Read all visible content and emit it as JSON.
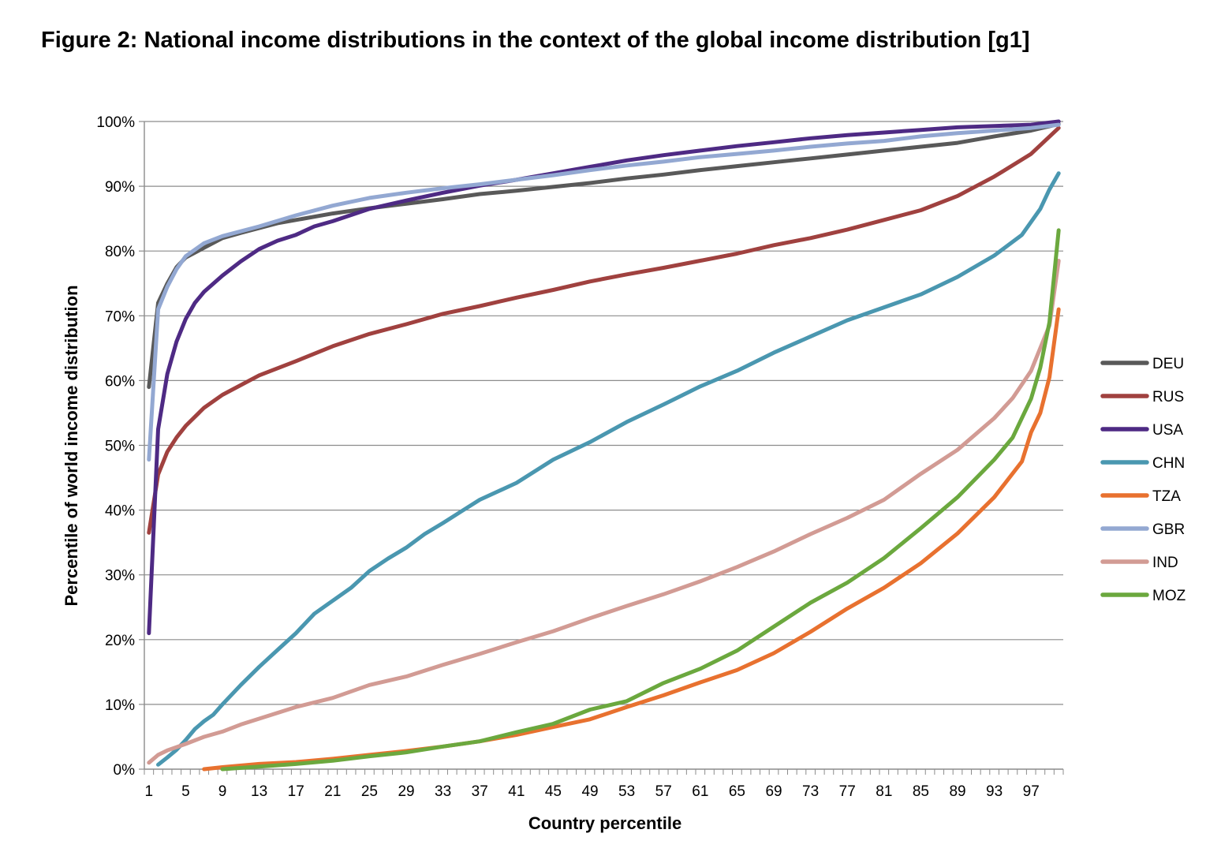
{
  "title": "Figure 2: National income distributions in the context of the global income distribution [g1]",
  "chart_data": {
    "type": "line",
    "title": "Figure 2: National income distributions in the context of the global income distribution [g1]",
    "xlabel": "Country percentile",
    "ylabel": "Percentile of world income distribution",
    "xlim": [
      1,
      100
    ],
    "ylim": [
      0,
      100
    ],
    "x_ticks": [
      "1",
      "5",
      "9",
      "13",
      "17",
      "21",
      "25",
      "29",
      "33",
      "37",
      "41",
      "45",
      "49",
      "53",
      "57",
      "61",
      "65",
      "69",
      "73",
      "77",
      "81",
      "85",
      "89",
      "93",
      "97"
    ],
    "y_ticks": [
      "0%",
      "10%",
      "20%",
      "30%",
      "40%",
      "50%",
      "60%",
      "70%",
      "80%",
      "90%",
      "100%"
    ],
    "grid": "horizontal",
    "legend_position": "right",
    "series": [
      {
        "name": "DEU",
        "color": "#595959",
        "points": [
          [
            1,
            59
          ],
          [
            2,
            72
          ],
          [
            3,
            75
          ],
          [
            4,
            77.5
          ],
          [
            5,
            79
          ],
          [
            7,
            80.5
          ],
          [
            9,
            82
          ],
          [
            11,
            82.8
          ],
          [
            15,
            84.3
          ],
          [
            21,
            85.8
          ],
          [
            25,
            86.6
          ],
          [
            29,
            87.3
          ],
          [
            33,
            88
          ],
          [
            37,
            88.8
          ],
          [
            41,
            89.3
          ],
          [
            45,
            89.9
          ],
          [
            49,
            90.5
          ],
          [
            53,
            91.2
          ],
          [
            57,
            91.8
          ],
          [
            61,
            92.5
          ],
          [
            65,
            93.1
          ],
          [
            69,
            93.7
          ],
          [
            73,
            94.3
          ],
          [
            77,
            94.9
          ],
          [
            81,
            95.5
          ],
          [
            85,
            96.1
          ],
          [
            89,
            96.7
          ],
          [
            93,
            97.7
          ],
          [
            97,
            98.6
          ],
          [
            100,
            99.6
          ]
        ]
      },
      {
        "name": "RUS",
        "color": "#A0413F",
        "points": [
          [
            1,
            36.5
          ],
          [
            2,
            45.5
          ],
          [
            3,
            49
          ],
          [
            4,
            51.2
          ],
          [
            5,
            53
          ],
          [
            7,
            55.8
          ],
          [
            9,
            57.8
          ],
          [
            13,
            60.8
          ],
          [
            17,
            63
          ],
          [
            21,
            65.3
          ],
          [
            25,
            67.2
          ],
          [
            29,
            68.7
          ],
          [
            33,
            70.3
          ],
          [
            37,
            71.5
          ],
          [
            41,
            72.8
          ],
          [
            45,
            74
          ],
          [
            49,
            75.3
          ],
          [
            53,
            76.4
          ],
          [
            57,
            77.4
          ],
          [
            61,
            78.5
          ],
          [
            65,
            79.6
          ],
          [
            69,
            80.9
          ],
          [
            73,
            82
          ],
          [
            77,
            83.3
          ],
          [
            81,
            84.8
          ],
          [
            85,
            86.3
          ],
          [
            89,
            88.5
          ],
          [
            93,
            91.5
          ],
          [
            97,
            95
          ],
          [
            100,
            99
          ]
        ]
      },
      {
        "name": "USA",
        "color": "#4E2A84",
        "points": [
          [
            1,
            21
          ],
          [
            2,
            52.5
          ],
          [
            3,
            61
          ],
          [
            4,
            66
          ],
          [
            5,
            69.5
          ],
          [
            6,
            72
          ],
          [
            7,
            73.7
          ],
          [
            9,
            76.2
          ],
          [
            11,
            78.4
          ],
          [
            13,
            80.3
          ],
          [
            15,
            81.6
          ],
          [
            17,
            82.5
          ],
          [
            19,
            83.8
          ],
          [
            21,
            84.6
          ],
          [
            25,
            86.5
          ],
          [
            29,
            87.8
          ],
          [
            33,
            89
          ],
          [
            37,
            90.1
          ],
          [
            41,
            91
          ],
          [
            45,
            92
          ],
          [
            49,
            93
          ],
          [
            53,
            94
          ],
          [
            57,
            94.8
          ],
          [
            61,
            95.5
          ],
          [
            65,
            96.2
          ],
          [
            69,
            96.8
          ],
          [
            73,
            97.4
          ],
          [
            77,
            97.9
          ],
          [
            81,
            98.3
          ],
          [
            85,
            98.7
          ],
          [
            89,
            99.1
          ],
          [
            93,
            99.3
          ],
          [
            97,
            99.5
          ],
          [
            100,
            100
          ]
        ]
      },
      {
        "name": "CHN",
        "color": "#4A97B0",
        "points": [
          [
            2,
            0.7
          ],
          [
            3,
            1.8
          ],
          [
            4,
            3
          ],
          [
            5,
            4.5
          ],
          [
            6,
            6.2
          ],
          [
            7,
            7.4
          ],
          [
            8,
            8.4
          ],
          [
            9,
            10
          ],
          [
            11,
            13
          ],
          [
            13,
            15.8
          ],
          [
            15,
            18.4
          ],
          [
            17,
            21
          ],
          [
            19,
            24
          ],
          [
            21,
            26
          ],
          [
            23,
            28
          ],
          [
            25,
            30.6
          ],
          [
            27,
            32.5
          ],
          [
            29,
            34.2
          ],
          [
            31,
            36.3
          ],
          [
            33,
            38
          ],
          [
            35,
            39.8
          ],
          [
            37,
            41.6
          ],
          [
            41,
            44.2
          ],
          [
            45,
            47.8
          ],
          [
            49,
            50.5
          ],
          [
            53,
            53.6
          ],
          [
            57,
            56.3
          ],
          [
            61,
            59.1
          ],
          [
            65,
            61.5
          ],
          [
            69,
            64.3
          ],
          [
            73,
            66.8
          ],
          [
            77,
            69.3
          ],
          [
            81,
            71.3
          ],
          [
            85,
            73.3
          ],
          [
            89,
            76
          ],
          [
            93,
            79.3
          ],
          [
            96,
            82.5
          ],
          [
            98,
            86.5
          ],
          [
            99,
            89.5
          ],
          [
            100,
            92
          ]
        ]
      },
      {
        "name": "TZA",
        "color": "#E8712F",
        "points": [
          [
            7,
            0
          ],
          [
            9,
            0.3
          ],
          [
            13,
            0.8
          ],
          [
            17,
            1.1
          ],
          [
            21,
            1.6
          ],
          [
            25,
            2.2
          ],
          [
            29,
            2.8
          ],
          [
            33,
            3.5
          ],
          [
            37,
            4.3
          ],
          [
            41,
            5.3
          ],
          [
            45,
            6.5
          ],
          [
            49,
            7.7
          ],
          [
            53,
            9.6
          ],
          [
            57,
            11.4
          ],
          [
            61,
            13.4
          ],
          [
            65,
            15.3
          ],
          [
            69,
            17.9
          ],
          [
            73,
            21.2
          ],
          [
            77,
            24.8
          ],
          [
            81,
            28
          ],
          [
            85,
            31.8
          ],
          [
            89,
            36.4
          ],
          [
            93,
            42
          ],
          [
            96,
            47.5
          ],
          [
            97,
            52
          ],
          [
            98,
            55
          ],
          [
            99,
            60.5
          ],
          [
            100,
            71
          ]
        ]
      },
      {
        "name": "GBR",
        "color": "#93A8D2",
        "points": [
          [
            1,
            47.8
          ],
          [
            2,
            71
          ],
          [
            3,
            74.5
          ],
          [
            4,
            77.2
          ],
          [
            5,
            79.2
          ],
          [
            7,
            81.2
          ],
          [
            9,
            82.3
          ],
          [
            13,
            83.8
          ],
          [
            17,
            85.5
          ],
          [
            21,
            87
          ],
          [
            25,
            88.2
          ],
          [
            29,
            89
          ],
          [
            33,
            89.7
          ],
          [
            37,
            90.3
          ],
          [
            41,
            91
          ],
          [
            45,
            91.7
          ],
          [
            49,
            92.5
          ],
          [
            53,
            93.2
          ],
          [
            57,
            93.8
          ],
          [
            61,
            94.5
          ],
          [
            65,
            95
          ],
          [
            69,
            95.5
          ],
          [
            73,
            96.1
          ],
          [
            77,
            96.6
          ],
          [
            81,
            97
          ],
          [
            85,
            97.7
          ],
          [
            89,
            98.2
          ],
          [
            93,
            98.6
          ],
          [
            97,
            99
          ],
          [
            100,
            99.5
          ]
        ]
      },
      {
        "name": "IND",
        "color": "#D29B94",
        "points": [
          [
            1,
            1
          ],
          [
            2,
            2.2
          ],
          [
            3,
            2.9
          ],
          [
            4,
            3.4
          ],
          [
            5,
            3.9
          ],
          [
            7,
            5
          ],
          [
            9,
            5.8
          ],
          [
            11,
            6.9
          ],
          [
            13,
            7.8
          ],
          [
            17,
            9.6
          ],
          [
            21,
            11
          ],
          [
            25,
            13
          ],
          [
            29,
            14.3
          ],
          [
            33,
            16.1
          ],
          [
            37,
            17.8
          ],
          [
            41,
            19.6
          ],
          [
            45,
            21.3
          ],
          [
            49,
            23.3
          ],
          [
            53,
            25.2
          ],
          [
            57,
            27
          ],
          [
            61,
            29
          ],
          [
            65,
            31.2
          ],
          [
            69,
            33.6
          ],
          [
            73,
            36.3
          ],
          [
            77,
            38.8
          ],
          [
            81,
            41.6
          ],
          [
            85,
            45.6
          ],
          [
            89,
            49.3
          ],
          [
            93,
            54.2
          ],
          [
            95,
            57.3
          ],
          [
            97,
            61.5
          ],
          [
            99,
            68.5
          ],
          [
            100,
            78.5
          ]
        ]
      },
      {
        "name": "MOZ",
        "color": "#6BA83E",
        "points": [
          [
            9,
            0
          ],
          [
            13,
            0.4
          ],
          [
            17,
            0.8
          ],
          [
            21,
            1.3
          ],
          [
            25,
            2
          ],
          [
            29,
            2.6
          ],
          [
            33,
            3.5
          ],
          [
            37,
            4.3
          ],
          [
            41,
            5.7
          ],
          [
            45,
            7
          ],
          [
            49,
            9.2
          ],
          [
            53,
            10.5
          ],
          [
            57,
            13.3
          ],
          [
            61,
            15.5
          ],
          [
            65,
            18.3
          ],
          [
            69,
            22
          ],
          [
            73,
            25.7
          ],
          [
            77,
            28.8
          ],
          [
            81,
            32.6
          ],
          [
            85,
            37.2
          ],
          [
            89,
            42
          ],
          [
            93,
            47.8
          ],
          [
            95,
            51.2
          ],
          [
            97,
            57.2
          ],
          [
            98,
            62
          ],
          [
            99,
            69
          ],
          [
            100,
            83.2
          ]
        ]
      }
    ]
  }
}
